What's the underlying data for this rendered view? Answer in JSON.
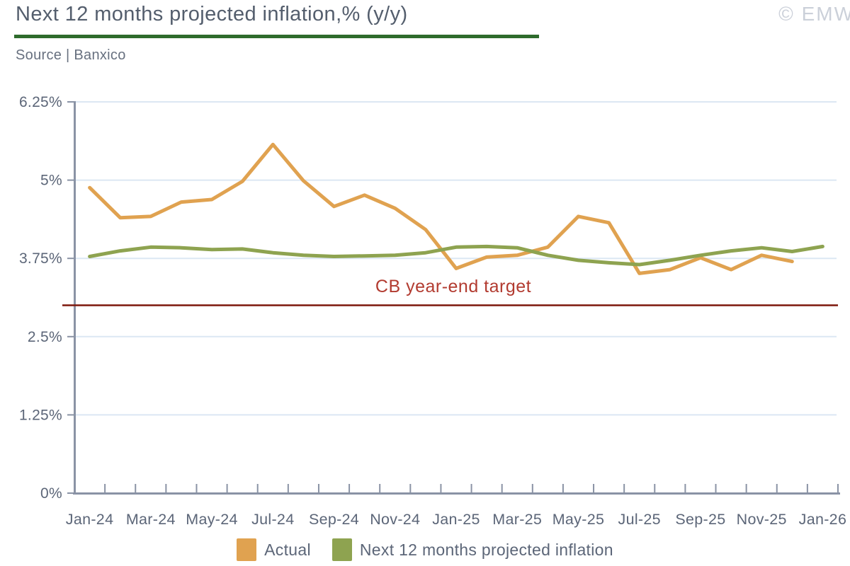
{
  "header": {
    "title": "Next 12 months projected inflation,% (y/y)",
    "source": "Source | Banxico",
    "watermark": "© EMW"
  },
  "target_line": {
    "label": "CB year-end target",
    "value": 3.0,
    "line_color": "#7d170b",
    "label_color": "#b23b30"
  },
  "legend": [
    {
      "label": "Actual",
      "color": "#e0a250"
    },
    {
      "label": "Next 12 months projected inflation",
      "color": "#8ea350"
    }
  ],
  "chart_data": {
    "type": "line",
    "title": "Next 12 months projected inflation,% (y/y)",
    "source": "Banxico",
    "ylim": [
      0,
      6.25
    ],
    "grid": true,
    "legend_position": "bottom",
    "y_ticks": [
      {
        "label": "6.25%",
        "value": 6.25
      },
      {
        "label": "5%",
        "value": 5
      },
      {
        "label": "3.75%",
        "value": 3.75
      },
      {
        "label": "2.5%",
        "value": 2.5
      },
      {
        "label": "1.25%",
        "value": 1.25
      },
      {
        "label": "0%",
        "value": 0
      }
    ],
    "categories": [
      "Jan-24",
      "Feb-24",
      "Mar-24",
      "Apr-24",
      "May-24",
      "Jun-24",
      "Jul-24",
      "Aug-24",
      "Sep-24",
      "Oct-24",
      "Nov-24",
      "Dec-24",
      "Jan-25",
      "Feb-25",
      "Mar-25",
      "Apr-25",
      "May-25",
      "Jun-25",
      "Jul-25",
      "Aug-25",
      "Sep-25",
      "Oct-25",
      "Nov-25",
      "Dec-25",
      "Jan-26"
    ],
    "x_label_every": 2,
    "series": [
      {
        "name": "Actual",
        "color": "#e0a250",
        "values": [
          4.88,
          4.4,
          4.42,
          4.65,
          4.69,
          4.98,
          5.57,
          4.99,
          4.58,
          4.76,
          4.55,
          4.21,
          3.59,
          3.77,
          3.8,
          3.93,
          4.42,
          4.32,
          3.51,
          3.57,
          3.76,
          3.57,
          3.8,
          3.7,
          null
        ]
      },
      {
        "name": "Next 12 months projected inflation",
        "color": "#8ea350",
        "values": [
          3.78,
          3.87,
          3.93,
          3.92,
          3.89,
          3.9,
          3.84,
          3.8,
          3.78,
          3.79,
          3.8,
          3.84,
          3.93,
          3.94,
          3.92,
          3.8,
          3.72,
          3.68,
          3.65,
          3.72,
          3.8,
          3.87,
          3.92,
          3.86,
          3.94
        ]
      }
    ]
  }
}
